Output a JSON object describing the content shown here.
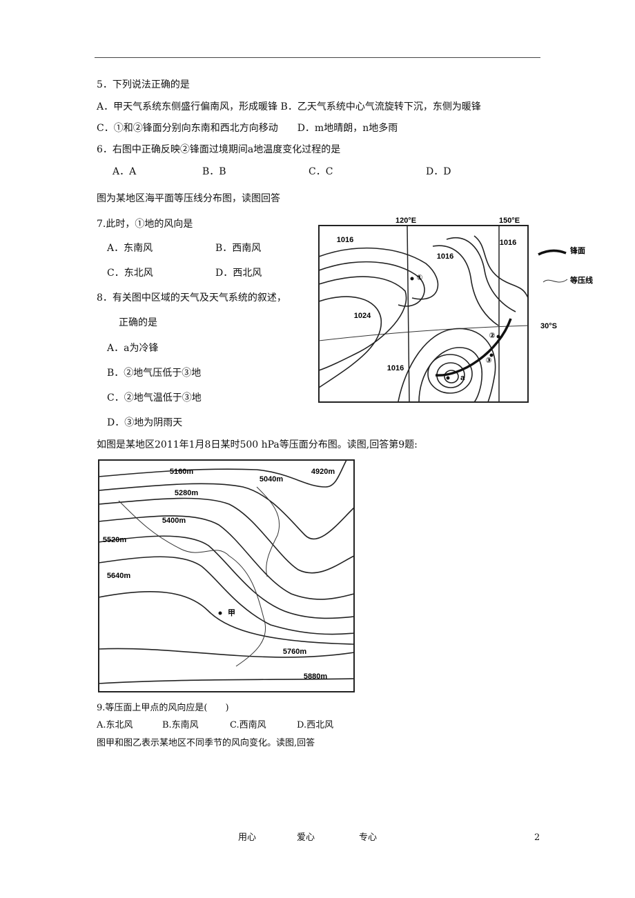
{
  "questions": [
    {
      "stem": "5．下列说法正确的是",
      "options": [
        "A．甲天气系统东侧盛行偏南风，形成暖锋 B．乙天气系统中心气流旋转下沉，东侧为暖锋",
        "C．①和②锋面分别向东南和西北方向移动　　D．m地晴朗，n地多雨"
      ]
    },
    {
      "stem": "6．右图中正确反映②锋面过境期间a地温度变化过程的是",
      "options": [
        "A．A",
        "B．B",
        "C．C",
        "D．D"
      ]
    },
    {
      "intro": "图为某地区海平面等压线分布图，读图回答",
      "stem": "7.此时，①地的风向是",
      "options": [
        "A．东南风",
        "B．西南风",
        "C．东北风",
        "D．西北风"
      ]
    },
    {
      "stem": "8．有关图中区域的天气及天气系统的叙述，",
      "stem2": "正确的是",
      "options": [
        "A．a为冷锋",
        "B．②地气压低于③地",
        "C．②地气温低于③地",
        "D．③地为阴雨天"
      ]
    },
    {
      "intro": "如图是某地区2011年1月8日某时500 hPa等压面分布图。读图,回答第9题:",
      "stem": "9.等压面上甲点的风向应是(　　)",
      "options": [
        "A.东北风",
        "B.东南风",
        "C.西南风",
        "D.西北风"
      ],
      "after": "图甲和图乙表示某地区不同季节的风向变化。读图,回答"
    }
  ],
  "map1": {
    "lon": [
      "120°E",
      "150°E"
    ],
    "lat": "30°S",
    "isobars": [
      "1016",
      "1016",
      "1016",
      "1024",
      "1016"
    ],
    "points": [
      "①",
      "②",
      "③",
      "a"
    ],
    "legend": [
      "锋面",
      "等压线"
    ]
  },
  "map2": {
    "contours": [
      "5160m",
      "5040m",
      "4920m",
      "5280m",
      "5400m",
      "5520m",
      "5640m",
      "5760m",
      "5880m"
    ],
    "point": "甲"
  },
  "footer": {
    "items": [
      "用心",
      "爱心",
      "专心"
    ],
    "page": "2"
  }
}
